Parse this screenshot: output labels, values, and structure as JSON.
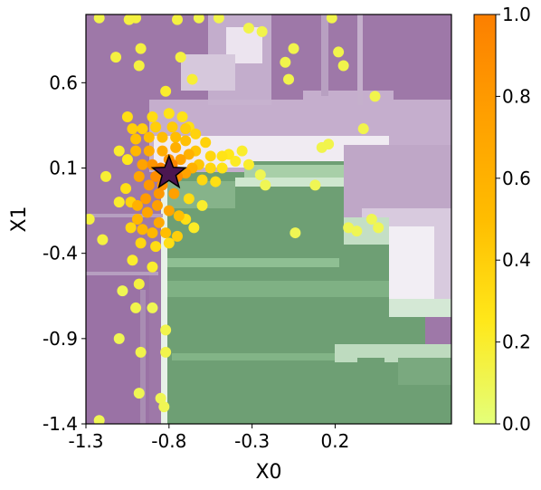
{
  "chart_data": {
    "type": "scatter",
    "background": "decision-region contour map (purple, white, green regions)",
    "xlabel": "X0",
    "ylabel": "X1",
    "xlim": [
      -1.3,
      0.9
    ],
    "ylim": [
      -1.4,
      1.0
    ],
    "xticks": [
      "-1.3",
      "-0.8",
      "-0.3",
      "0.2"
    ],
    "xtick_values": [
      -1.3,
      -0.8,
      -0.3,
      0.2
    ],
    "yticks": [
      "0.6",
      "0.1",
      "-0.4",
      "-0.9",
      "-1.4"
    ],
    "ytick_values": [
      0.6,
      0.1,
      -0.4,
      -0.9,
      -1.4
    ],
    "colorbar": {
      "ticks": [
        "0.0",
        "0.2",
        "0.4",
        "0.6",
        "0.8",
        "1.0"
      ],
      "tick_values": [
        0.0,
        0.2,
        0.4,
        0.6,
        0.8,
        1.0
      ],
      "colormap": "Wistia"
    },
    "marker_star": {
      "x": -0.8,
      "y": 0.07
    },
    "points": [
      {
        "x": -0.82,
        "y": 0.08,
        "v": 1.0
      },
      {
        "x": -0.85,
        "y": 0.1,
        "v": 0.95
      },
      {
        "x": -0.78,
        "y": 0.12,
        "v": 0.95
      },
      {
        "x": -0.88,
        "y": 0.05,
        "v": 0.9
      },
      {
        "x": -0.75,
        "y": 0.05,
        "v": 0.9
      },
      {
        "x": -0.84,
        "y": 0.0,
        "v": 0.85
      },
      {
        "x": -0.9,
        "y": 0.12,
        "v": 0.85
      },
      {
        "x": -0.8,
        "y": 0.15,
        "v": 0.85
      },
      {
        "x": -0.86,
        "y": -0.05,
        "v": 0.8
      },
      {
        "x": -0.92,
        "y": 0.0,
        "v": 0.8
      },
      {
        "x": -0.94,
        "y": -0.08,
        "v": 0.78
      },
      {
        "x": -0.87,
        "y": -0.12,
        "v": 0.75
      },
      {
        "x": -0.8,
        "y": -0.15,
        "v": 0.7
      },
      {
        "x": -0.73,
        "y": 0.15,
        "v": 0.72
      },
      {
        "x": -0.7,
        "y": 0.07,
        "v": 0.72
      },
      {
        "x": -0.77,
        "y": -0.05,
        "v": 0.75
      },
      {
        "x": -0.96,
        "y": 0.12,
        "v": 0.72
      },
      {
        "x": -0.98,
        "y": 0.05,
        "v": 0.7
      },
      {
        "x": -0.93,
        "y": -0.16,
        "v": 0.7
      },
      {
        "x": -0.86,
        "y": -0.22,
        "v": 0.68
      },
      {
        "x": -0.92,
        "y": 0.2,
        "v": 0.65
      },
      {
        "x": -0.84,
        "y": 0.2,
        "v": 0.65
      },
      {
        "x": -0.76,
        "y": 0.22,
        "v": 0.62
      },
      {
        "x": -0.68,
        "y": 0.18,
        "v": 0.6
      },
      {
        "x": -0.66,
        "y": 0.1,
        "v": 0.6
      },
      {
        "x": -0.99,
        "y": -0.12,
        "v": 0.6
      },
      {
        "x": -0.99,
        "y": -0.2,
        "v": 0.55
      },
      {
        "x": -0.96,
        "y": -0.26,
        "v": 0.55
      },
      {
        "x": -0.9,
        "y": -0.28,
        "v": 0.55
      },
      {
        "x": -0.82,
        "y": -0.28,
        "v": 0.5
      },
      {
        "x": -1.0,
        "y": 0.2,
        "v": 0.55
      },
      {
        "x": -1.0,
        "y": 0.27,
        "v": 0.48
      },
      {
        "x": -0.92,
        "y": 0.28,
        "v": 0.5
      },
      {
        "x": -0.84,
        "y": 0.28,
        "v": 0.5
      },
      {
        "x": -0.76,
        "y": 0.28,
        "v": 0.5
      },
      {
        "x": -0.7,
        "y": 0.26,
        "v": 0.48
      },
      {
        "x": -0.64,
        "y": 0.2,
        "v": 0.45
      },
      {
        "x": -0.62,
        "y": 0.12,
        "v": 0.45
      },
      {
        "x": -0.74,
        "y": -0.18,
        "v": 0.48
      },
      {
        "x": -0.75,
        "y": -0.3,
        "v": 0.4
      },
      {
        "x": -1.02,
        "y": 0.33,
        "v": 0.4
      },
      {
        "x": -0.96,
        "y": 0.33,
        "v": 0.4
      },
      {
        "x": -0.88,
        "y": 0.34,
        "v": 0.4
      },
      {
        "x": -0.78,
        "y": 0.34,
        "v": 0.42
      },
      {
        "x": -0.7,
        "y": 0.33,
        "v": 0.4
      },
      {
        "x": -0.64,
        "y": 0.3,
        "v": 0.38
      },
      {
        "x": -0.58,
        "y": 0.25,
        "v": 0.38
      },
      {
        "x": -0.55,
        "y": 0.17,
        "v": 0.35
      },
      {
        "x": -0.55,
        "y": 0.1,
        "v": 0.35
      },
      {
        "x": -0.6,
        "y": 0.03,
        "v": 0.35
      },
      {
        "x": -1.03,
        "y": -0.1,
        "v": 0.38
      },
      {
        "x": -1.03,
        "y": -0.25,
        "v": 0.35
      },
      {
        "x": -0.97,
        "y": -0.34,
        "v": 0.35
      },
      {
        "x": -0.88,
        "y": -0.36,
        "v": 0.32
      },
      {
        "x": -0.8,
        "y": -0.34,
        "v": 0.3
      },
      {
        "x": -1.05,
        "y": 0.4,
        "v": 0.3
      },
      {
        "x": -0.9,
        "y": 0.4,
        "v": 0.32
      },
      {
        "x": -0.8,
        "y": 0.42,
        "v": 0.28
      },
      {
        "x": -0.72,
        "y": 0.4,
        "v": 0.28
      },
      {
        "x": -0.68,
        "y": 0.34,
        "v": 0.3
      },
      {
        "x": -0.48,
        "y": 0.17,
        "v": 0.28
      },
      {
        "x": -0.48,
        "y": 0.1,
        "v": 0.28
      },
      {
        "x": -0.44,
        "y": 0.18,
        "v": 0.25
      },
      {
        "x": -0.4,
        "y": 0.14,
        "v": 0.22
      },
      {
        "x": -0.36,
        "y": 0.2,
        "v": 0.2
      },
      {
        "x": -0.32,
        "y": 0.12,
        "v": 0.2
      },
      {
        "x": -0.6,
        "y": -0.12,
        "v": 0.2
      },
      {
        "x": -0.65,
        "y": -0.25,
        "v": 0.22
      },
      {
        "x": -1.1,
        "y": -0.1,
        "v": 0.2
      },
      {
        "x": -1.1,
        "y": 0.2,
        "v": 0.2
      },
      {
        "x": -1.18,
        "y": 0.05,
        "v": 0.18
      },
      {
        "x": -1.28,
        "y": -0.2,
        "v": 0.15
      },
      {
        "x": -1.2,
        "y": -0.32,
        "v": 0.15
      },
      {
        "x": -1.02,
        "y": -0.44,
        "v": 0.2
      },
      {
        "x": -0.9,
        "y": -0.48,
        "v": 0.2
      },
      {
        "x": -0.98,
        "y": -0.58,
        "v": 0.15
      },
      {
        "x": -1.0,
        "y": -0.72,
        "v": 0.12
      },
      {
        "x": -0.97,
        "y": -0.98,
        "v": 0.12
      },
      {
        "x": -0.98,
        "y": -1.22,
        "v": 0.1
      },
      {
        "x": -0.82,
        "y": -0.98,
        "v": 0.12
      },
      {
        "x": -0.85,
        "y": -1.25,
        "v": 0.1
      },
      {
        "x": -0.83,
        "y": -1.3,
        "v": 0.1
      },
      {
        "x": -0.82,
        "y": -0.85,
        "v": 0.12
      },
      {
        "x": -0.9,
        "y": -0.72,
        "v": 0.1
      },
      {
        "x": -1.22,
        "y": -1.38,
        "v": 0.1
      },
      {
        "x": -1.04,
        "y": 0.97,
        "v": 0.15
      },
      {
        "x": -1.0,
        "y": 0.98,
        "v": 0.15
      },
      {
        "x": -0.97,
        "y": 0.8,
        "v": 0.15
      },
      {
        "x": -0.98,
        "y": 0.7,
        "v": 0.15
      },
      {
        "x": -0.75,
        "y": 0.97,
        "v": 0.15
      },
      {
        "x": -0.73,
        "y": 0.75,
        "v": 0.15
      },
      {
        "x": -0.66,
        "y": 0.62,
        "v": 0.18
      },
      {
        "x": -0.82,
        "y": 0.55,
        "v": 0.2
      },
      {
        "x": -1.12,
        "y": 0.75,
        "v": 0.15
      },
      {
        "x": -1.22,
        "y": 0.98,
        "v": 0.12
      },
      {
        "x": -0.62,
        "y": 0.98,
        "v": 0.12
      },
      {
        "x": -0.5,
        "y": 0.98,
        "v": 0.12
      },
      {
        "x": -0.32,
        "y": 0.92,
        "v": 0.12
      },
      {
        "x": -0.24,
        "y": 0.9,
        "v": 0.12
      },
      {
        "x": -0.1,
        "y": 0.72,
        "v": 0.12
      },
      {
        "x": -0.08,
        "y": 0.62,
        "v": 0.12
      },
      {
        "x": -0.05,
        "y": 0.8,
        "v": 0.12
      },
      {
        "x": 0.18,
        "y": 0.98,
        "v": 0.12
      },
      {
        "x": 0.22,
        "y": 0.78,
        "v": 0.12
      },
      {
        "x": 0.25,
        "y": 0.7,
        "v": 0.12
      },
      {
        "x": 0.12,
        "y": 0.22,
        "v": 0.12
      },
      {
        "x": 0.16,
        "y": 0.24,
        "v": 0.12
      },
      {
        "x": 0.44,
        "y": 0.52,
        "v": 0.12
      },
      {
        "x": 0.37,
        "y": 0.33,
        "v": 0.12
      },
      {
        "x": 0.08,
        "y": 0.0,
        "v": 0.1
      },
      {
        "x": 0.28,
        "y": -0.25,
        "v": 0.1
      },
      {
        "x": 0.33,
        "y": -0.27,
        "v": 0.1
      },
      {
        "x": 0.46,
        "y": -0.25,
        "v": 0.1
      },
      {
        "x": 0.42,
        "y": -0.2,
        "v": 0.1
      },
      {
        "x": -0.04,
        "y": -0.28,
        "v": 0.1
      },
      {
        "x": -0.25,
        "y": 0.06,
        "v": 0.1
      },
      {
        "x": -0.22,
        "y": 0.0,
        "v": 0.1
      },
      {
        "x": -1.08,
        "y": -0.62,
        "v": 0.1
      },
      {
        "x": -1.1,
        "y": -0.9,
        "v": 0.1
      },
      {
        "x": -1.05,
        "y": 0.15,
        "v": 0.25
      },
      {
        "x": -1.06,
        "y": -0.02,
        "v": 0.3
      },
      {
        "x": -0.52,
        "y": 0.02,
        "v": 0.3
      },
      {
        "x": -0.68,
        "y": -0.08,
        "v": 0.32
      },
      {
        "x": -0.7,
        "y": -0.2,
        "v": 0.3
      }
    ]
  }
}
